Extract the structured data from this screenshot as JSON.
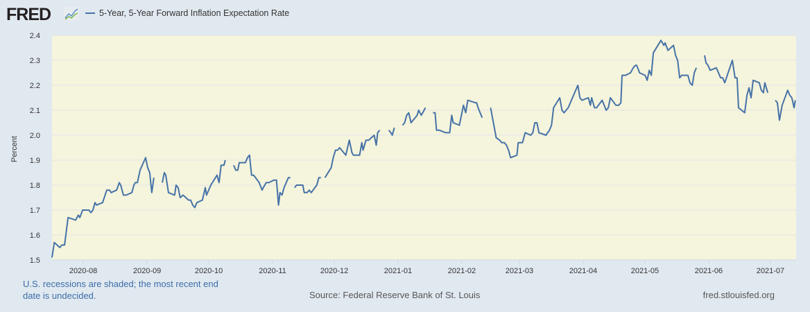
{
  "header": {
    "logo_text": "FRED",
    "logo_icon": "line-chart-icon"
  },
  "colors": {
    "line": "#4572a7",
    "plot_bg": "#f5f4dc",
    "page_bg": "#e1e9f0",
    "grid": "#e2e5ea",
    "note": "#3b6ca8"
  },
  "footer": {
    "recession_note": "U.S. recessions are shaded; the most recent end date is undecided.",
    "source": "Source: Federal Reserve Bank of St. Louis",
    "site": "fred.stlouisfed.org"
  },
  "chart_data": {
    "type": "line",
    "title": "",
    "xlabel": "",
    "ylabel": "Percent",
    "x_units": "days since 2020-08-01",
    "xlim": [
      -15.2,
      346.5
    ],
    "ylim": [
      1.5,
      2.4
    ],
    "grid": true,
    "legend": [
      {
        "name": "5-Year, 5-Year Forward Inflation Expectation Rate",
        "position": "top-left"
      }
    ],
    "yticks": [
      1.5,
      1.6,
      1.7,
      1.8,
      1.9,
      2.0,
      2.1,
      2.2,
      2.3,
      2.4
    ],
    "ytick_labels": [
      "1.5",
      "1.6",
      "1.7",
      "1.8",
      "1.9",
      "2.0",
      "2.1",
      "2.2",
      "2.3",
      "2.4"
    ],
    "xticks": [
      0,
      31,
      61,
      92,
      122,
      153,
      184,
      212,
      243,
      273,
      304,
      334
    ],
    "xtick_labels": [
      "2020-08",
      "2020-09",
      "2020-10",
      "2020-11",
      "2020-12",
      "2021-01",
      "2021-02",
      "2021-03",
      "2021-04",
      "2021-05",
      "2021-06",
      "2021-07"
    ],
    "series": [
      {
        "name": "5-Year, 5-Year Forward Inflation Expectation Rate",
        "segments": [
          [
            [
              -15.2,
              1.51
            ],
            [
              -14.1,
              1.57
            ],
            [
              -11.4,
              1.55
            ],
            [
              -10.4,
              1.56
            ],
            [
              -9.1,
              1.56
            ],
            [
              -7.4,
              1.67
            ],
            [
              -3.7,
              1.66
            ],
            [
              -2.4,
              1.68
            ],
            [
              -1.7,
              1.67
            ],
            [
              -0.3,
              1.7
            ],
            [
              2.7,
              1.7
            ],
            [
              3.7,
              1.69
            ],
            [
              4.7,
              1.7
            ],
            [
              5.7,
              1.73
            ],
            [
              6.4,
              1.72
            ],
            [
              9.4,
              1.73
            ],
            [
              11.4,
              1.78
            ],
            [
              12.8,
              1.78
            ],
            [
              13.5,
              1.77
            ],
            [
              16.2,
              1.78
            ],
            [
              17.5,
              1.81
            ],
            [
              18.2,
              1.8
            ],
            [
              19.5,
              1.76
            ],
            [
              20.9,
              1.76
            ],
            [
              23.6,
              1.77
            ],
            [
              24.6,
              1.8
            ],
            [
              25.3,
              1.81
            ],
            [
              26.3,
              1.81
            ],
            [
              27.6,
              1.86
            ],
            [
              30.3,
              1.91
            ],
            [
              31.3,
              1.87
            ],
            [
              32.3,
              1.85
            ],
            [
              33.3,
              1.77
            ],
            [
              34.3,
              1.83
            ]
          ],
          [
            [
              38.4,
              1.81
            ],
            [
              39.4,
              1.85
            ],
            [
              40.1,
              1.84
            ],
            [
              41.4,
              1.77
            ],
            [
              44.4,
              1.76
            ],
            [
              45.1,
              1.8
            ],
            [
              46.1,
              1.79
            ],
            [
              47.1,
              1.75
            ],
            [
              48.5,
              1.76
            ],
            [
              51.2,
              1.74
            ],
            [
              52.2,
              1.74
            ],
            [
              53.2,
              1.72
            ],
            [
              54.2,
              1.71
            ],
            [
              55.2,
              1.73
            ],
            [
              57.9,
              1.74
            ],
            [
              59.3,
              1.79
            ],
            [
              59.9,
              1.76
            ],
            [
              62.0,
              1.8
            ],
            [
              65.0,
              1.84
            ],
            [
              66.0,
              1.81
            ],
            [
              67.0,
              1.88
            ],
            [
              68.4,
              1.88
            ],
            [
              69.0,
              1.9
            ]
          ],
          [
            [
              73.1,
              1.88
            ],
            [
              74.1,
              1.86
            ],
            [
              75.1,
              1.86
            ],
            [
              75.8,
              1.89
            ],
            [
              78.8,
              1.89
            ],
            [
              79.8,
              1.91
            ],
            [
              80.8,
              1.92
            ],
            [
              81.8,
              1.84
            ],
            [
              82.8,
              1.84
            ],
            [
              85.5,
              1.81
            ],
            [
              86.9,
              1.78
            ],
            [
              87.5,
              1.79
            ],
            [
              88.9,
              1.81
            ],
            [
              90.2,
              1.81
            ],
            [
              92.6,
              1.82
            ],
            [
              93.9,
              1.82
            ],
            [
              94.9,
              1.72
            ],
            [
              95.6,
              1.77
            ],
            [
              96.6,
              1.76
            ],
            [
              97.6,
              1.79
            ],
            [
              99.7,
              1.83
            ],
            [
              100.7,
              1.83
            ]
          ],
          [
            [
              102.7,
              1.79
            ],
            [
              103.7,
              1.8
            ],
            [
              106.7,
              1.8
            ],
            [
              107.4,
              1.77
            ],
            [
              108.8,
              1.77
            ],
            [
              109.8,
              1.78
            ],
            [
              110.8,
              1.77
            ],
            [
              113.5,
              1.8
            ],
            [
              114.5,
              1.83
            ],
            [
              115.5,
              1.83
            ]
          ],
          [
            [
              117.5,
              1.83
            ],
            [
              120.5,
              1.87
            ],
            [
              121.5,
              1.91
            ],
            [
              122.6,
              1.94
            ],
            [
              123.6,
              1.94
            ],
            [
              124.6,
              1.95
            ],
            [
              127.6,
              1.92
            ],
            [
              129.3,
              1.98
            ],
            [
              130.6,
              1.93
            ],
            [
              131.3,
              1.92
            ],
            [
              134.3,
              1.92
            ],
            [
              135.4,
              1.97
            ],
            [
              136.0,
              1.94
            ],
            [
              137.4,
              1.98
            ],
            [
              138.7,
              1.98
            ],
            [
              141.4,
              2.0
            ],
            [
              142.4,
              1.96
            ],
            [
              143.1,
              2.01
            ],
            [
              144.1,
              2.02
            ]
          ],
          [
            [
              148.5,
              2.02
            ],
            [
              149.5,
              2.01
            ],
            [
              150.2,
              2.0
            ],
            [
              151.2,
              2.03
            ]
          ],
          [
            [
              155.2,
              2.04
            ],
            [
              156.2,
              2.05
            ],
            [
              157.2,
              2.08
            ],
            [
              158.2,
              2.09
            ],
            [
              159.3,
              2.05
            ],
            [
              162.3,
              2.08
            ],
            [
              163.0,
              2.1
            ],
            [
              164.3,
              2.08
            ],
            [
              165.0,
              2.09
            ],
            [
              166.3,
              2.11
            ]
          ],
          [
            [
              170.0,
              2.09
            ],
            [
              171.0,
              2.09
            ],
            [
              171.7,
              2.02
            ],
            [
              173.1,
              2.02
            ],
            [
              176.1,
              2.01
            ],
            [
              178.1,
              2.01
            ],
            [
              179.1,
              2.08
            ],
            [
              179.8,
              2.05
            ],
            [
              182.8,
              2.04
            ],
            [
              184.8,
              2.12
            ],
            [
              185.9,
              2.09
            ],
            [
              186.9,
              2.14
            ],
            [
              190.6,
              2.13
            ],
            [
              191.2,
              2.13
            ],
            [
              191.9,
              2.11
            ],
            [
              192.9,
              2.09
            ],
            [
              193.9,
              2.07
            ]
          ],
          [
            [
              198.0,
              2.11
            ],
            [
              200.7,
              1.99
            ],
            [
              202.4,
              1.98
            ],
            [
              203.4,
              1.97
            ],
            [
              204.7,
              1.97
            ],
            [
              205.7,
              1.96
            ],
            [
              206.7,
              1.94
            ],
            [
              207.7,
              1.91
            ],
            [
              210.8,
              1.92
            ],
            [
              211.4,
              1.97
            ],
            [
              213.5,
              1.97
            ],
            [
              214.8,
              2.01
            ],
            [
              217.5,
              2.0
            ],
            [
              218.5,
              2.01
            ],
            [
              219.5,
              2.05
            ],
            [
              220.5,
              2.05
            ],
            [
              221.5,
              2.01
            ],
            [
              224.9,
              2.0
            ],
            [
              226.6,
              2.02
            ],
            [
              227.6,
              2.04
            ],
            [
              228.6,
              2.11
            ],
            [
              231.6,
              2.15
            ],
            [
              232.7,
              2.1
            ],
            [
              233.7,
              2.09
            ],
            [
              235.7,
              2.11
            ],
            [
              240.4,
              2.2
            ],
            [
              241.4,
              2.15
            ],
            [
              242.4,
              2.14
            ],
            [
              245.5,
              2.15
            ],
            [
              246.5,
              2.12
            ],
            [
              247.1,
              2.15
            ],
            [
              248.5,
              2.11
            ],
            [
              249.5,
              2.11
            ],
            [
              252.2,
              2.14
            ],
            [
              254.2,
              2.1
            ],
            [
              255.2,
              2.11
            ],
            [
              256.2,
              2.15
            ],
            [
              258.9,
              2.12
            ],
            [
              260.3,
              2.12
            ],
            [
              261.3,
              2.13
            ],
            [
              261.9,
              2.24
            ],
            [
              263.6,
              2.24
            ],
            [
              266.0,
              2.25
            ],
            [
              267.3,
              2.27
            ],
            [
              268.4,
              2.28
            ],
            [
              269.0,
              2.28
            ],
            [
              270.4,
              2.25
            ],
            [
              273.1,
              2.24
            ],
            [
              274.1,
              2.22
            ],
            [
              275.1,
              2.26
            ],
            [
              276.1,
              2.24
            ],
            [
              277.1,
              2.33
            ],
            [
              280.8,
              2.38
            ],
            [
              282.2,
              2.36
            ],
            [
              282.8,
              2.37
            ],
            [
              284.2,
              2.34
            ],
            [
              286.9,
              2.36
            ],
            [
              287.9,
              2.32
            ],
            [
              288.9,
              2.3
            ],
            [
              289.9,
              2.23
            ],
            [
              290.9,
              2.24
            ],
            [
              293.9,
              2.24
            ],
            [
              294.9,
              2.21
            ],
            [
              296.0,
              2.2
            ],
            [
              297.0,
              2.25
            ],
            [
              298.0,
              2.27
            ]
          ],
          [
            [
              302.0,
              2.32
            ],
            [
              302.7,
              2.29
            ],
            [
              303.7,
              2.28
            ],
            [
              304.7,
              2.26
            ],
            [
              307.7,
              2.27
            ],
            [
              309.8,
              2.23
            ],
            [
              310.8,
              2.23
            ],
            [
              311.8,
              2.21
            ],
            [
              315.5,
              2.3
            ],
            [
              316.8,
              2.23
            ],
            [
              317.8,
              2.23
            ],
            [
              318.5,
              2.11
            ],
            [
              321.5,
              2.09
            ],
            [
              322.6,
              2.16
            ],
            [
              323.6,
              2.19
            ],
            [
              324.6,
              2.15
            ],
            [
              325.6,
              2.22
            ],
            [
              328.6,
              2.21
            ],
            [
              329.6,
              2.18
            ],
            [
              330.6,
              2.17
            ],
            [
              331.3,
              2.21
            ],
            [
              332.7,
              2.17
            ]
          ],
          [
            [
              336.4,
              2.14
            ],
            [
              337.4,
              2.13
            ],
            [
              338.4,
              2.06
            ],
            [
              339.7,
              2.12
            ],
            [
              342.4,
              2.18
            ],
            [
              343.4,
              2.16
            ],
            [
              344.4,
              2.15
            ],
            [
              345.5,
              2.11
            ],
            [
              346.1,
              2.14
            ]
          ]
        ]
      }
    ]
  }
}
